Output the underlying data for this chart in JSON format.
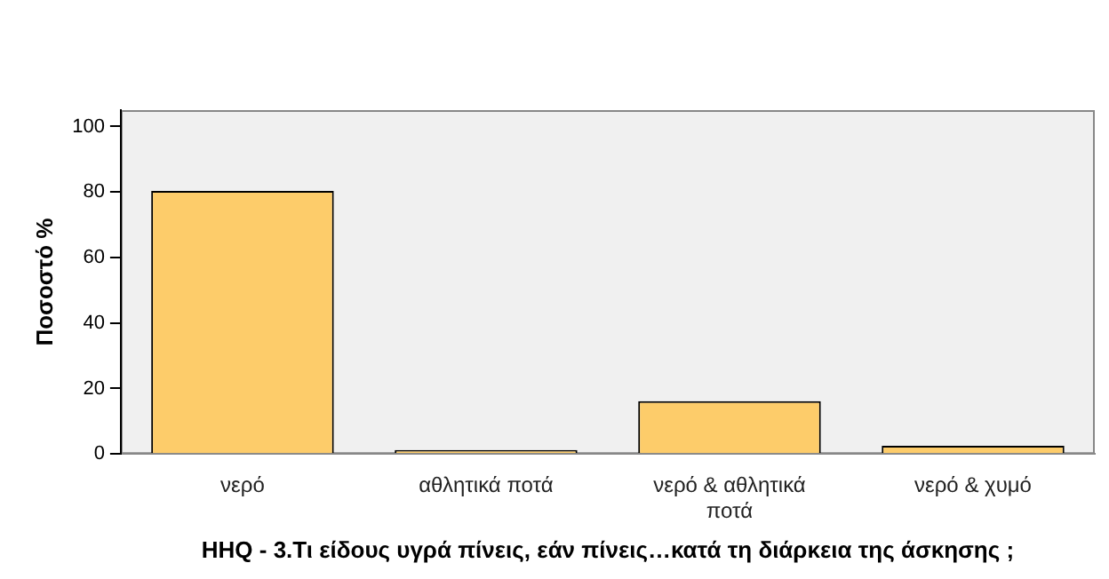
{
  "chart_data": {
    "type": "bar",
    "xlabel": "HHQ - 3.Τι είδους υγρά πίνεις, εάν πίνεις…κατά τη διάρκεια της άσκησης ;",
    "ylabel": "Ποσοστό %",
    "categories": [
      "νερό",
      "αθλητικά ποτά",
      "νερό & αθλητικά ποτά",
      "νερό & χυμό"
    ],
    "values": [
      80.3,
      1.2,
      16.1,
      2.5
    ],
    "color": "#fdcc6a",
    "ylim": [
      0,
      105
    ],
    "yticks": [
      0,
      20,
      40,
      60,
      80,
      100
    ],
    "grid": false,
    "legend": false
  }
}
